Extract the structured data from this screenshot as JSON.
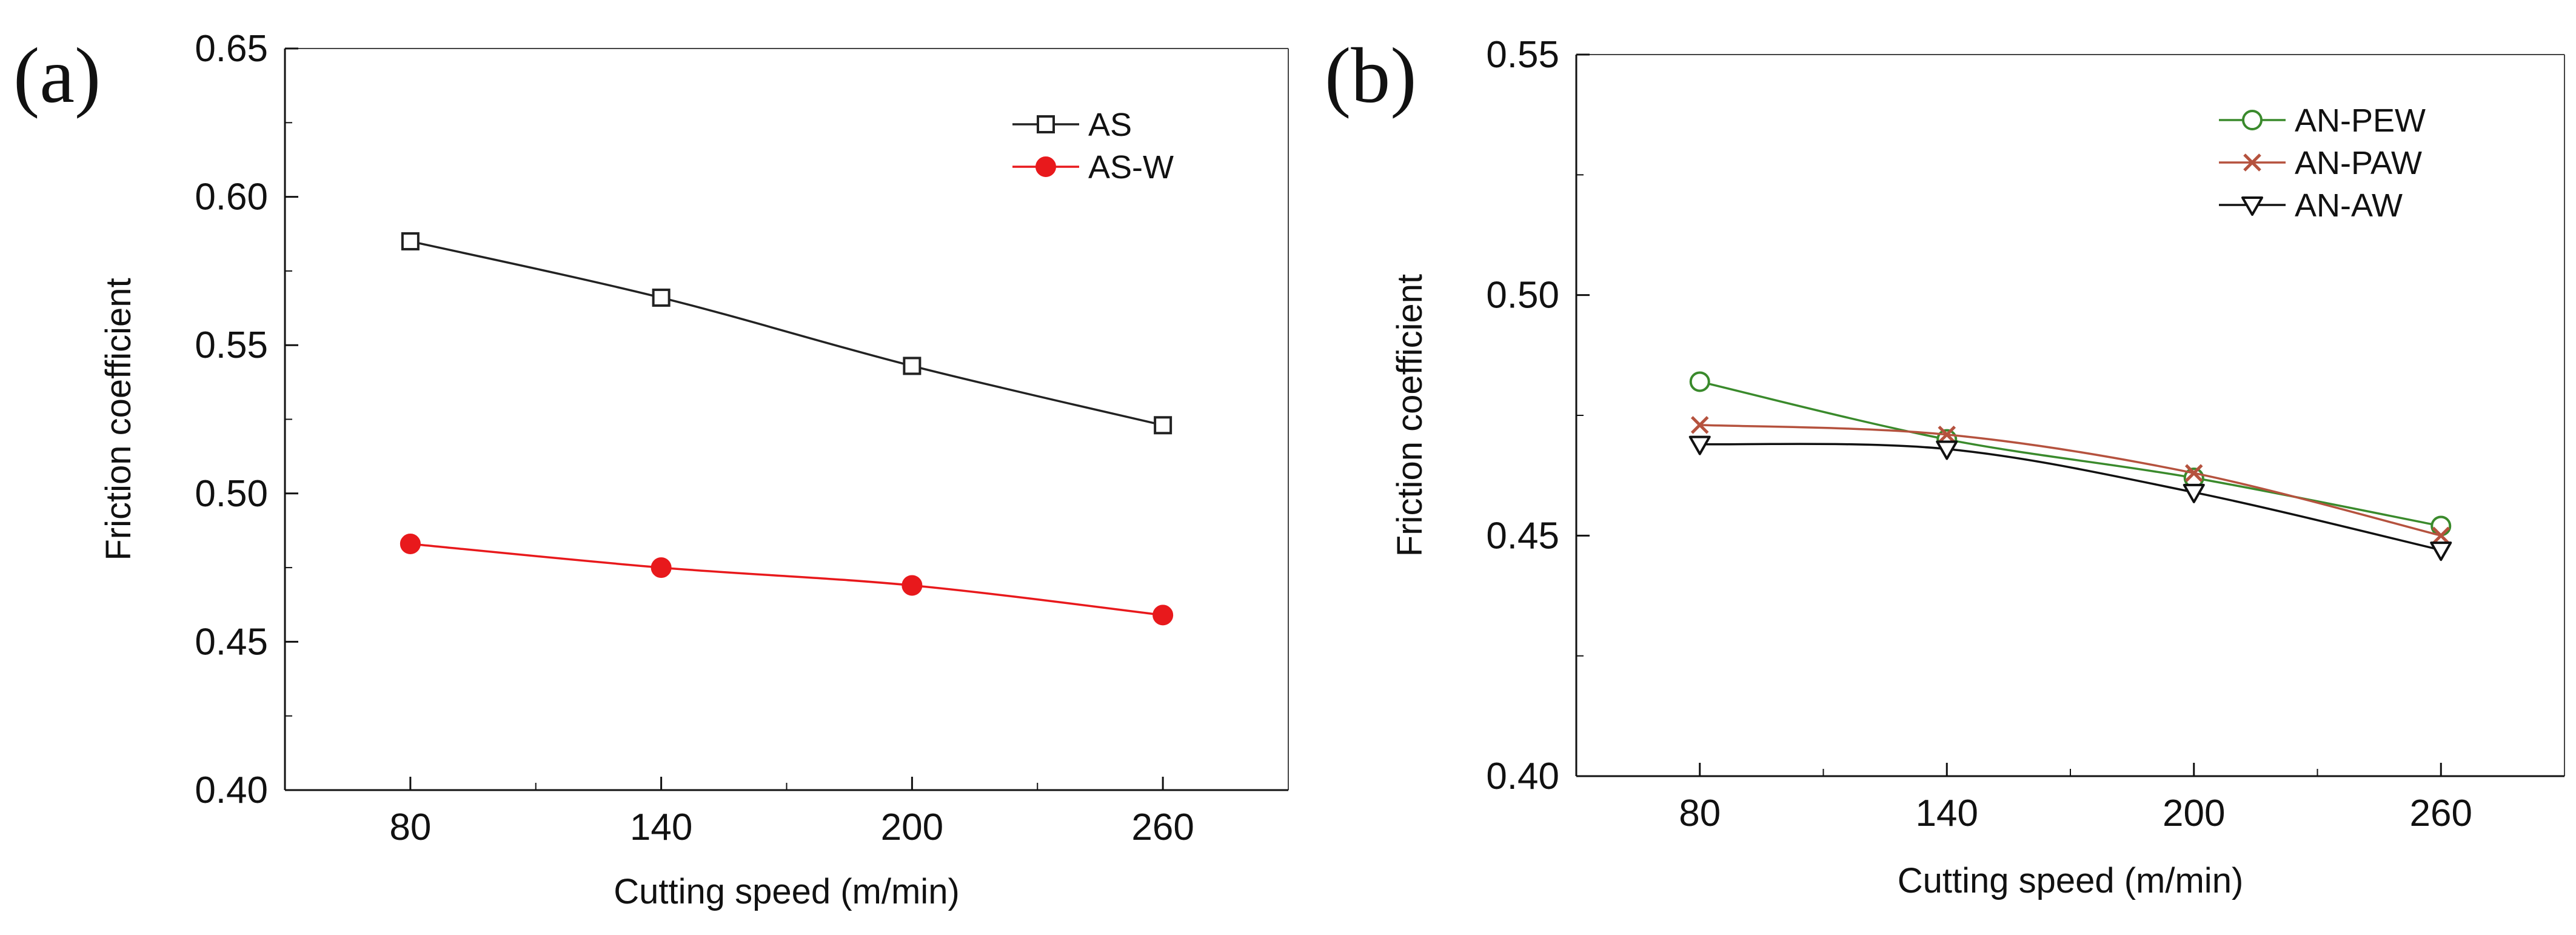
{
  "chart_data": [
    {
      "type": "line",
      "panel_label": "(a)",
      "xlabel": "Cutting speed (m/min)",
      "ylabel": "Friction coefficient",
      "x": [
        80,
        140,
        200,
        260
      ],
      "xlim": [
        50,
        290
      ],
      "ylim": [
        0.4,
        0.65
      ],
      "yticks": [
        "0.40",
        "0.45",
        "0.50",
        "0.55",
        "0.60",
        "0.65"
      ],
      "xticks": [
        "80",
        "140",
        "200",
        "260"
      ],
      "legend_position": "top-right",
      "series": [
        {
          "name": "AS",
          "values": [
            0.585,
            0.566,
            0.543,
            0.523
          ],
          "color": "#222222",
          "marker": "square-open"
        },
        {
          "name": "AS-W",
          "values": [
            0.483,
            0.475,
            0.469,
            0.459
          ],
          "color": "#e8191c",
          "marker": "circle-filled"
        }
      ]
    },
    {
      "type": "line",
      "panel_label": "(b)",
      "xlabel": "Cutting speed (m/min)",
      "ylabel": "Friction coefficient",
      "x": [
        80,
        140,
        200,
        260
      ],
      "xlim": [
        50,
        290
      ],
      "ylim": [
        0.4,
        0.55
      ],
      "yticks": [
        "0.40",
        "0.45",
        "0.50",
        "0.55"
      ],
      "xticks": [
        "80",
        "140",
        "200",
        "260"
      ],
      "legend_position": "top-right",
      "series": [
        {
          "name": "AN-PEW",
          "values": [
            0.482,
            0.47,
            0.462,
            0.452
          ],
          "color": "#3a8a2c",
          "marker": "circle-open"
        },
        {
          "name": "AN-PAW",
          "values": [
            0.473,
            0.471,
            0.463,
            0.45
          ],
          "color": "#b5523e",
          "marker": "x"
        },
        {
          "name": "AN-AW",
          "values": [
            0.469,
            0.468,
            0.459,
            0.447
          ],
          "color": "#111111",
          "marker": "triangle-down-open"
        }
      ]
    }
  ]
}
